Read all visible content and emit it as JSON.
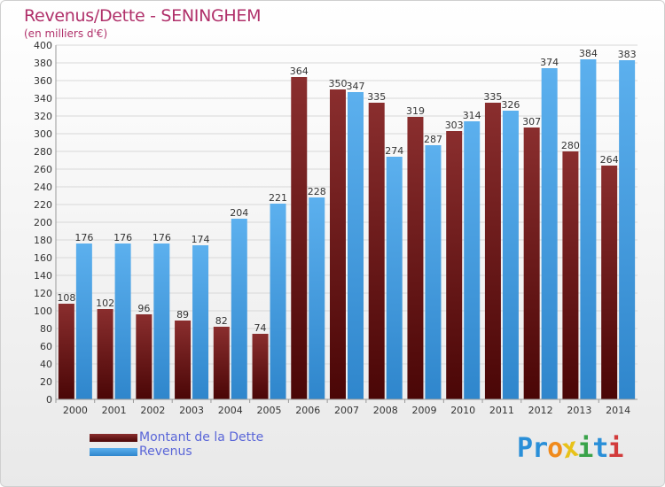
{
  "header": {
    "title": "Revenus/Dette - SENINGHEM",
    "subtitle": "(en milliers d'€)"
  },
  "colors": {
    "dette": "#7a1f1f",
    "revenus": "#4aa0e6",
    "title": "#b0306a",
    "legend_text": "#5a66d8"
  },
  "brand": {
    "text": "Proxiti",
    "letters": [
      "P",
      "r",
      "o",
      "x",
      "i",
      "t",
      "i"
    ],
    "colors": [
      "#2a8fd8",
      "#2a8fd8",
      "#f08a1c",
      "#e8c21a",
      "#3aa34a",
      "#2a8fd8",
      "#d23b3b"
    ]
  },
  "chart_data": {
    "type": "bar",
    "title": "Revenus/Dette - SENINGHEM",
    "subtitle": "(en milliers d'€)",
    "categories": [
      "2000",
      "2001",
      "2002",
      "2003",
      "2004",
      "2005",
      "2006",
      "2007",
      "2008",
      "2009",
      "2010",
      "2011",
      "2012",
      "2013",
      "2014"
    ],
    "series": [
      {
        "name": "Montant de la Dette",
        "values": [
          108,
          102,
          96,
          89,
          82,
          74,
          364,
          350,
          335,
          319,
          303,
          335,
          307,
          280,
          264
        ]
      },
      {
        "name": "Revenus",
        "values": [
          176,
          176,
          176,
          174,
          204,
          221,
          228,
          347,
          274,
          287,
          314,
          326,
          374,
          384,
          383
        ]
      }
    ],
    "ylim": [
      0,
      400
    ],
    "ytick_step": 20,
    "grid": true,
    "legend_position": "bottom-left"
  }
}
